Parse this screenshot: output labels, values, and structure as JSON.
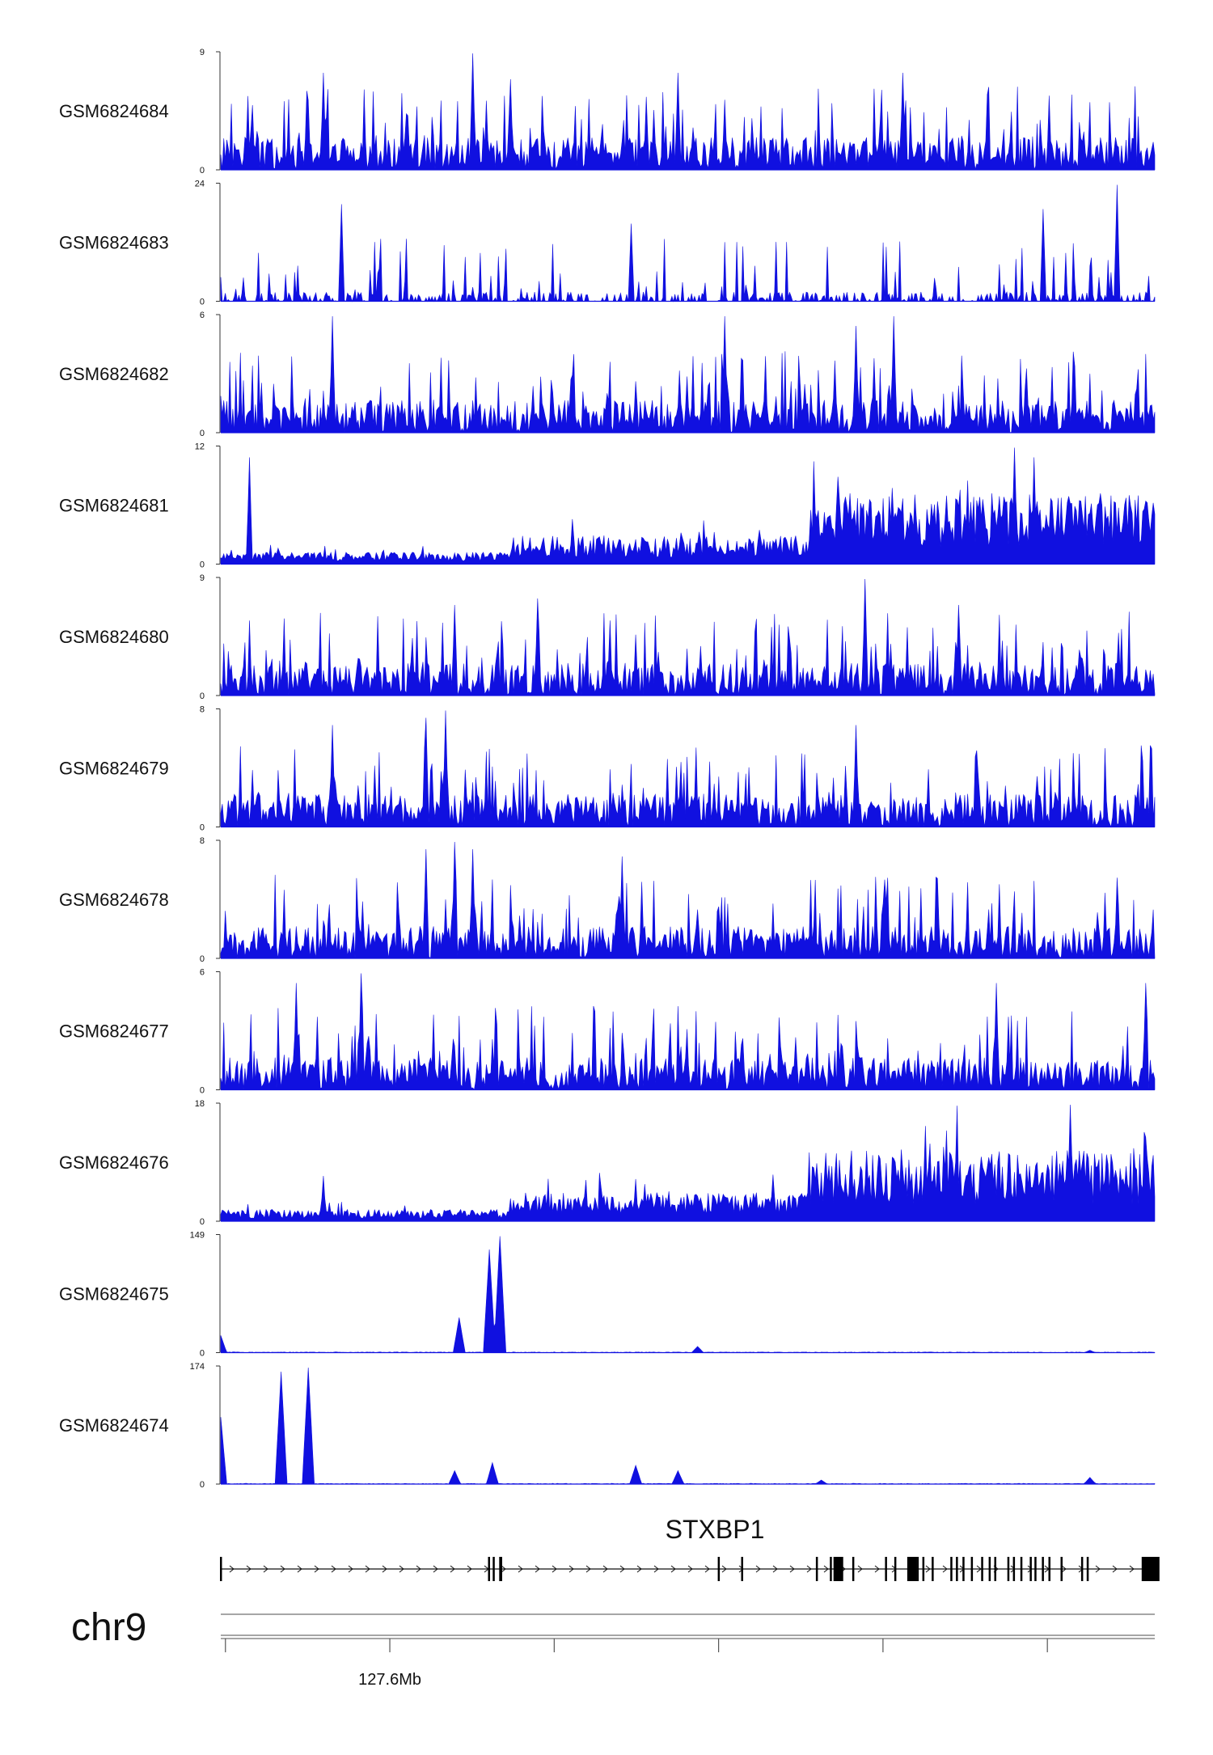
{
  "chart_data": {
    "type": "area",
    "title": "",
    "xlabel": "",
    "ylabel": "",
    "fill_color": "#1010e0",
    "tracks": [
      {
        "name": "GSM6824684",
        "ymax": "9",
        "ymin": "0",
        "profile": "uniform",
        "peaks": [
          [
            0.27,
            9
          ],
          [
            0.49,
            7.5
          ],
          [
            0.73,
            7.5
          ],
          [
            0.11,
            7.5
          ],
          [
            0.31,
            7
          ]
        ],
        "seed": 11
      },
      {
        "name": "GSM6824683",
        "ymax": "24",
        "ymin": "0",
        "profile": "sparse",
        "peaks": [
          [
            0.96,
            24
          ],
          [
            0.13,
            20
          ],
          [
            0.88,
            19
          ],
          [
            0.44,
            16
          ]
        ],
        "seed": 23
      },
      {
        "name": "GSM6824682",
        "ymax": "6",
        "ymin": "0",
        "profile": "uniform",
        "peaks": [
          [
            0.54,
            6
          ],
          [
            0.72,
            6
          ],
          [
            0.12,
            6
          ],
          [
            0.68,
            5.5
          ]
        ],
        "seed": 37
      },
      {
        "name": "GSM6824681",
        "ymax": "12",
        "ymin": "0",
        "profile": "rising",
        "peaks": [
          [
            0.03,
            11
          ],
          [
            0.85,
            12
          ],
          [
            0.87,
            11
          ],
          [
            0.66,
            9
          ]
        ],
        "seed": 41
      },
      {
        "name": "GSM6824680",
        "ymax": "9",
        "ymin": "0",
        "profile": "uniform",
        "peaks": [
          [
            0.69,
            9
          ],
          [
            0.34,
            7.5
          ],
          [
            0.25,
            7
          ],
          [
            0.79,
            7
          ]
        ],
        "seed": 53
      },
      {
        "name": "GSM6824679",
        "ymax": "8",
        "ymin": "0",
        "profile": "uniform",
        "peaks": [
          [
            0.24,
            8
          ],
          [
            0.22,
            7.5
          ],
          [
            0.12,
            7
          ],
          [
            0.68,
            7
          ]
        ],
        "seed": 67
      },
      {
        "name": "GSM6824678",
        "ymax": "8",
        "ymin": "0",
        "profile": "uniform",
        "peaks": [
          [
            0.25,
            8
          ],
          [
            0.22,
            7.5
          ],
          [
            0.27,
            7.5
          ],
          [
            0.43,
            7
          ]
        ],
        "seed": 71
      },
      {
        "name": "GSM6824677",
        "ymax": "6",
        "ymin": "0",
        "profile": "uniform",
        "peaks": [
          [
            0.15,
            6
          ],
          [
            0.08,
            5.5
          ],
          [
            0.83,
            5.5
          ],
          [
            0.99,
            5.5
          ]
        ],
        "seed": 83
      },
      {
        "name": "GSM6824676",
        "ymax": "18",
        "ymin": "0",
        "profile": "rising",
        "peaks": [
          [
            0.91,
            18
          ],
          [
            0.76,
            12
          ],
          [
            0.99,
            13
          ],
          [
            0.11,
            7
          ]
        ],
        "seed": 97
      },
      {
        "name": "GSM6824675",
        "ymax": "149",
        "ymin": "0",
        "profile": "flat",
        "peaks": [
          [
            0.299,
            149
          ],
          [
            0.288,
            132
          ],
          [
            0.256,
            45
          ],
          [
            0.0,
            22
          ],
          [
            0.51,
            8
          ],
          [
            0.93,
            3
          ]
        ],
        "seed": 101
      },
      {
        "name": "GSM6824674",
        "ymax": "174",
        "ymin": "0",
        "profile": "flat",
        "peaks": [
          [
            0.0,
            100
          ],
          [
            0.065,
            168
          ],
          [
            0.094,
            174
          ],
          [
            0.29,
            32
          ],
          [
            0.251,
            20
          ],
          [
            0.445,
            28
          ],
          [
            0.489,
            20
          ],
          [
            0.93,
            10
          ],
          [
            0.643,
            6
          ]
        ],
        "seed": 109
      }
    ],
    "gene": {
      "name": "STXBP1",
      "strand": "+",
      "exons": [
        0.0,
        0.287,
        0.292,
        0.299,
        0.3,
        0.533,
        0.558,
        0.638,
        0.653,
        0.658,
        0.677,
        0.712,
        0.722,
        0.738,
        0.74,
        0.746,
        0.752,
        0.762,
        0.782,
        0.788,
        0.795,
        0.804,
        0.815,
        0.823,
        0.829,
        0.843,
        0.849,
        0.857,
        0.867,
        0.872,
        0.88,
        0.887,
        0.9,
        0.922,
        0.928,
        0.99,
        1.0
      ],
      "utr_blocks": [
        0.656,
        0.735,
        0.986
      ]
    },
    "chromosome": "chr9",
    "coordinate_label": "127.6Mb",
    "coordinate_tick_index": 1,
    "ticks_fraction": [
      0.005,
      0.181,
      0.357,
      0.533,
      0.709,
      0.885
    ]
  }
}
